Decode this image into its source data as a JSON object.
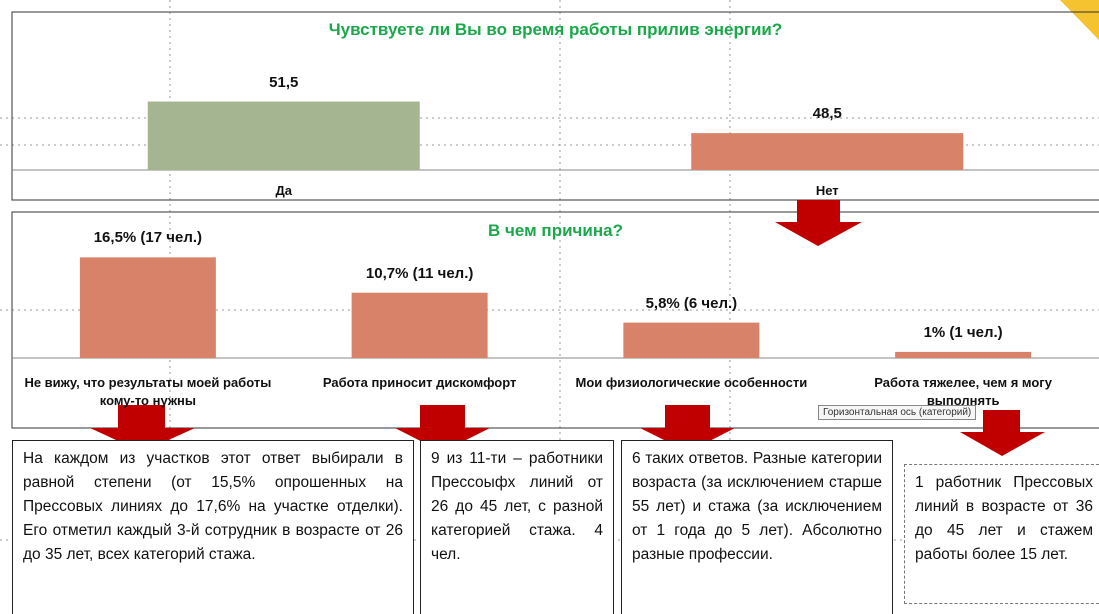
{
  "chart_data": [
    {
      "type": "bar",
      "title": "Чувствуете ли Вы во время работы прилив энергии?",
      "categories": [
        "Да",
        "Нет"
      ],
      "values": [
        51.5,
        48.5
      ],
      "value_labels": [
        "51,5",
        "48,5"
      ],
      "colors": [
        "#a5b592",
        "#d9826a"
      ],
      "ylim": [
        45,
        60
      ]
    },
    {
      "type": "bar",
      "title": "В чем причина?",
      "categories": [
        "Не вижу, что результаты моей работы кому-то нужны",
        "Работа приносит дискомфорт",
        "Мои физиологические особенности",
        "Работа тяжелее, чем я могу выполнять"
      ],
      "values": [
        16.5,
        10.7,
        5.8,
        1
      ],
      "value_labels": [
        "16,5% (17 чел.)",
        "10,7% (11 чел.)",
        "5,8% (6 чел.)",
        "1% (1 чел.)"
      ],
      "colors": [
        "#d9826a",
        "#d9826a",
        "#d9826a",
        "#d9826a"
      ],
      "ylim": [
        0,
        20
      ]
    }
  ],
  "tooltip": "Горизонтальная ось (категорий)",
  "text_boxes": [
    "На каждом из участков этот ответ выбирали в равной степени (от 15,5% опрошенных на Прессовых линиях до 17,6% на участке отделки). Его отметил каждый 3-й сотрудник в возрасте от 26 до 35 лет, всех категорий стажа.",
    "9 из 11-ти – работники Прессоыфх линий от 26 до 45 лет, с разной категорией стажа. 4 чел.",
    "6 таких ответов. Разные категории возраста (за исключением старше 55 лет) и стажа (за исключением от 1 года до 5 лет). Абсолютно разные профессии.",
    "1 работник Прессовых линий в возрасте от 36 до 45 лет и стажем работы более 15 лет."
  ]
}
